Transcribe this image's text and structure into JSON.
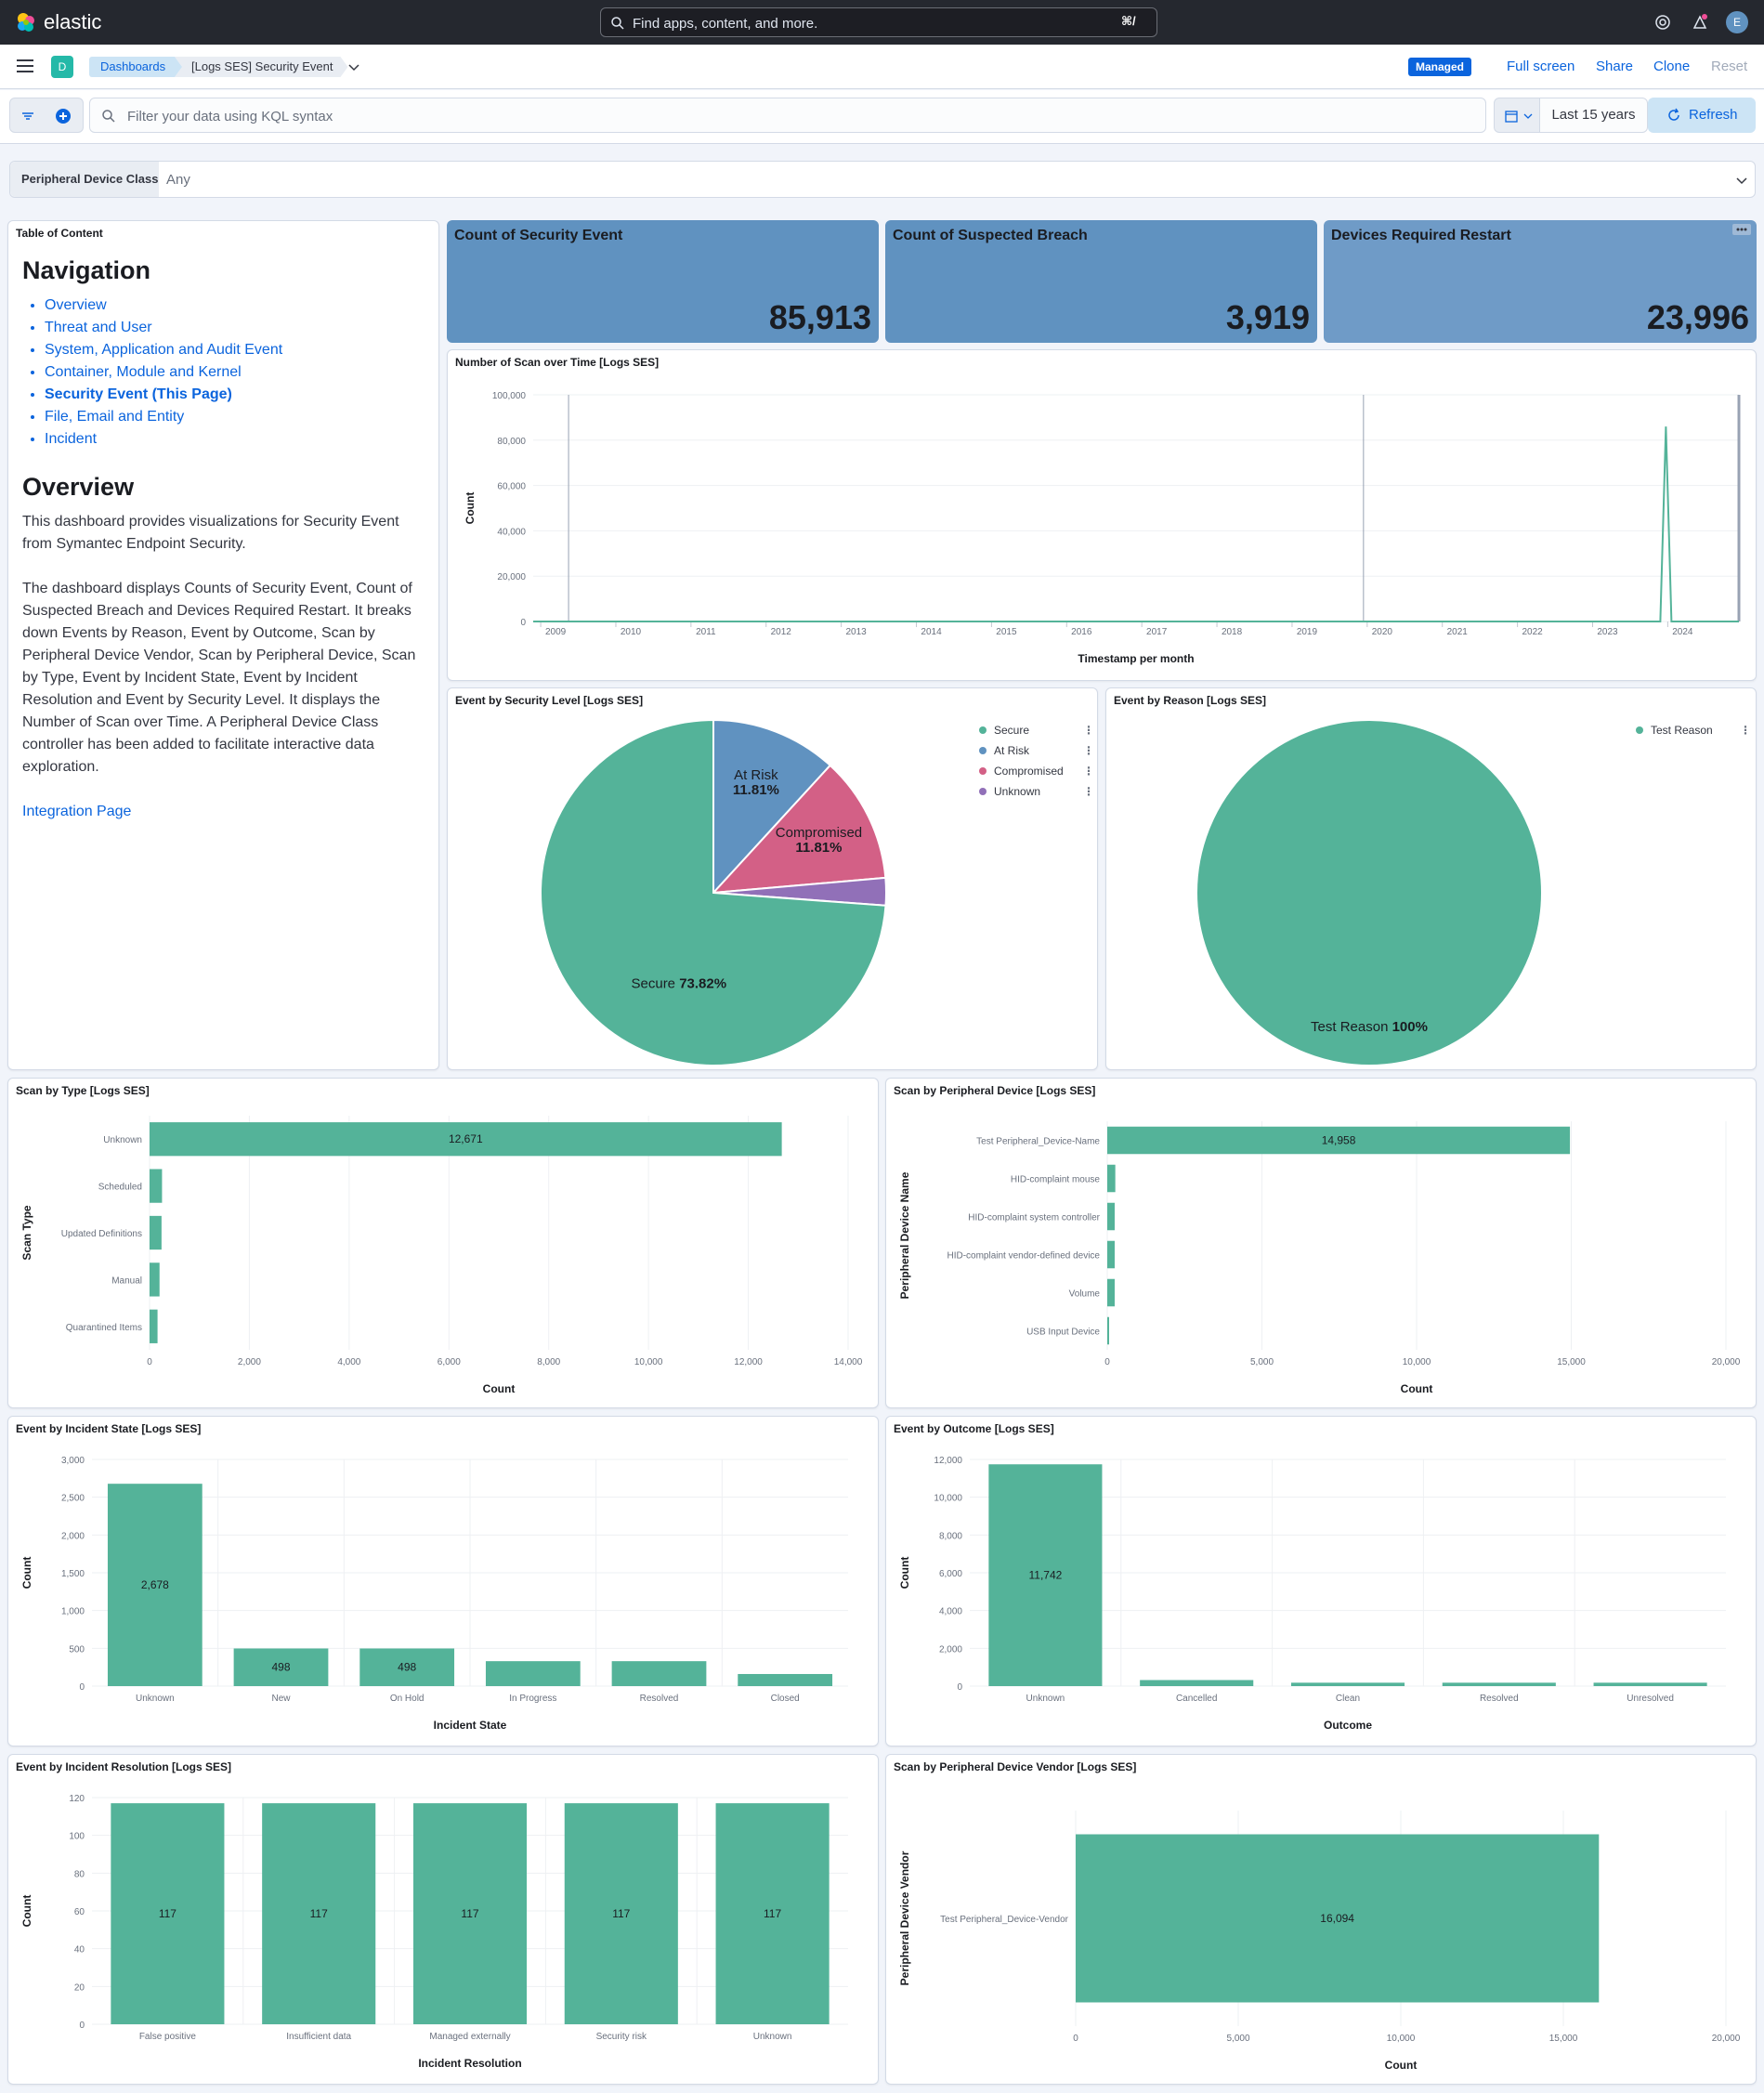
{
  "header": {
    "logo_text": "elastic",
    "search_placeholder": "Find apps, content, and more.",
    "search_shortcut": "⌘/",
    "avatar_initial": "E"
  },
  "nav": {
    "space_initial": "D",
    "breadcrumbs": [
      "Dashboards",
      "[Logs SES] Security Event"
    ],
    "managed_badge": "Managed",
    "links": [
      "Full screen",
      "Share",
      "Clone",
      "Reset"
    ]
  },
  "query": {
    "placeholder": "Filter your data using KQL syntax",
    "time_range": "Last 15 years",
    "refresh_label": "Refresh"
  },
  "control": {
    "label": "Peripheral Device Class",
    "value": "Any"
  },
  "toc": {
    "panel_title": "Table of Content",
    "nav_heading": "Navigation",
    "nav_items": [
      "Overview",
      "Threat and User",
      "System, Application and Audit Event",
      "Container, Module and Kernel",
      "Security Event (This Page)",
      "File, Email and Entity",
      "Incident"
    ],
    "overview_heading": "Overview",
    "paragraph1": "This dashboard provides visualizations for Security Event from Symantec Endpoint Security.",
    "paragraph2": "The dashboard displays Counts of Security Event, Count of Suspected Breach and Devices Required Restart. It breaks down Events by Reason, Event by Outcome, Scan by Peripheral Device Vendor, Scan by Peripheral Device, Scan by Type, Event by Incident State, Event by Incident Resolution and Event by Security Level. It displays the Number of Scan over Time. A Peripheral Device Class controller has been added to facilitate interactive data exploration.",
    "link": "Integration Page"
  },
  "metrics": [
    {
      "title": "Count of Security Event",
      "value": "85,913"
    },
    {
      "title": "Count of Suspected Breach",
      "value": "3,919"
    },
    {
      "title": "Devices Required Restart",
      "value": "23,996"
    }
  ],
  "colors": {
    "accent": "#54b399",
    "metric": "#6092c0",
    "link": "#0b64dd"
  },
  "chart_data": [
    {
      "id": "scan-over-time",
      "type": "line",
      "title": "Number of Scan over Time [Logs SES]",
      "xlabel": "Timestamp per month",
      "ylabel": "Count",
      "x_ticks": [
        "2009",
        "2010",
        "2011",
        "2012",
        "2013",
        "2014",
        "2015",
        "2016",
        "2017",
        "2018",
        "2019",
        "2020",
        "2021",
        "2022",
        "2023",
        "2024"
      ],
      "y_ticks": [
        "0",
        "20,000",
        "40,000",
        "60,000",
        "80,000",
        "100,000"
      ],
      "ylim": [
        0,
        100000
      ],
      "spike": {
        "x": "2024",
        "y": 86000
      }
    },
    {
      "id": "security-level",
      "type": "pie",
      "title": "Event by Security Level [Logs SES]",
      "slices": [
        {
          "name": "At Risk",
          "value": 11.81,
          "label": "11.81%",
          "color": "#6092c0"
        },
        {
          "name": "Compromised",
          "value": 11.81,
          "label": "11.81%",
          "color": "#d36086"
        },
        {
          "name": "Unknown",
          "value": 2.56,
          "label": "",
          "color": "#9170b8"
        },
        {
          "name": "Secure",
          "value": 73.82,
          "label": "73.82%",
          "color": "#54b399"
        }
      ],
      "legend": [
        "Secure",
        "At Risk",
        "Compromised",
        "Unknown"
      ]
    },
    {
      "id": "reason",
      "type": "pie",
      "title": "Event by Reason [Logs SES]",
      "slices": [
        {
          "name": "Test Reason",
          "value": 100,
          "label": "100%",
          "color": "#54b399"
        }
      ],
      "legend": [
        "Test Reason"
      ]
    },
    {
      "id": "scan-by-type",
      "type": "bar",
      "orientation": "horizontal",
      "title": "Scan by Type [Logs SES]",
      "xlabel": "Count",
      "ylabel": "Scan Type",
      "categories": [
        "Unknown",
        "Scheduled",
        "Updated Definitions",
        "Manual",
        "Quarantined Items"
      ],
      "values": [
        12671,
        250,
        240,
        200,
        160
      ],
      "labels": [
        "12,671",
        "",
        "",
        "",
        ""
      ],
      "ticks": [
        "0",
        "2,000",
        "4,000",
        "6,000",
        "8,000",
        "10,000",
        "12,000",
        "14,000"
      ],
      "xlim": [
        0,
        14000
      ]
    },
    {
      "id": "scan-by-device",
      "type": "bar",
      "orientation": "horizontal",
      "title": "Scan by Peripheral Device [Logs SES]",
      "xlabel": "Count",
      "ylabel": "Peripheral Device Name",
      "categories": [
        "Test Peripheral_Device-Name",
        "HID-complaint mouse",
        "HID-complaint system controller",
        "HID-complaint vendor-defined device",
        "Volume",
        "USB Input Device"
      ],
      "values": [
        14958,
        260,
        240,
        240,
        240,
        60
      ],
      "labels": [
        "14,958",
        "",
        "",
        "",
        "",
        ""
      ],
      "ticks": [
        "0",
        "5,000",
        "10,000",
        "15,000",
        "20,000"
      ],
      "xlim": [
        0,
        20000
      ]
    },
    {
      "id": "incident-state",
      "type": "bar",
      "orientation": "vertical",
      "title": "Event by Incident State [Logs SES]",
      "xlabel": "Incident State",
      "ylabel": "Count",
      "categories": [
        "Unknown",
        "New",
        "On Hold",
        "In Progress",
        "Resolved",
        "Closed"
      ],
      "values": [
        2678,
        498,
        498,
        330,
        330,
        160
      ],
      "labels": [
        "2,678",
        "498",
        "498",
        "",
        "",
        ""
      ],
      "ticks": [
        "0",
        "500",
        "1,000",
        "1,500",
        "2,000",
        "2,500",
        "3,000"
      ],
      "ylim": [
        0,
        3000
      ]
    },
    {
      "id": "outcome",
      "type": "bar",
      "orientation": "vertical",
      "title": "Event by Outcome [Logs SES]",
      "xlabel": "Outcome",
      "ylabel": "Count",
      "categories": [
        "Unknown",
        "Cancelled",
        "Clean",
        "Resolved",
        "Unresolved"
      ],
      "values": [
        11742,
        320,
        180,
        180,
        180
      ],
      "labels": [
        "11,742",
        "",
        "",
        "",
        ""
      ],
      "ticks": [
        "0",
        "2,000",
        "4,000",
        "6,000",
        "8,000",
        "10,000",
        "12,000"
      ],
      "ylim": [
        0,
        12000
      ]
    },
    {
      "id": "incident-resolution",
      "type": "bar",
      "orientation": "vertical",
      "title": "Event by Incident Resolution [Logs SES]",
      "xlabel": "Incident Resolution",
      "ylabel": "Count",
      "categories": [
        "False positive",
        "Insufficient data",
        "Managed externally",
        "Security risk",
        "Unknown"
      ],
      "values": [
        117,
        117,
        117,
        117,
        117
      ],
      "labels": [
        "117",
        "117",
        "117",
        "117",
        "117"
      ],
      "ticks": [
        "0",
        "20",
        "40",
        "60",
        "80",
        "100",
        "120"
      ],
      "ylim": [
        0,
        120
      ]
    },
    {
      "id": "device-vendor",
      "type": "bar",
      "orientation": "horizontal",
      "title": "Scan by Peripheral Device Vendor [Logs SES]",
      "xlabel": "Count",
      "ylabel": "Peripheral Device Vendor",
      "categories": [
        "Test Peripheral_Device-Vendor"
      ],
      "values": [
        16094
      ],
      "labels": [
        "16,094"
      ],
      "ticks": [
        "0",
        "5,000",
        "10,000",
        "15,000",
        "20,000"
      ],
      "xlim": [
        0,
        20000
      ]
    }
  ]
}
